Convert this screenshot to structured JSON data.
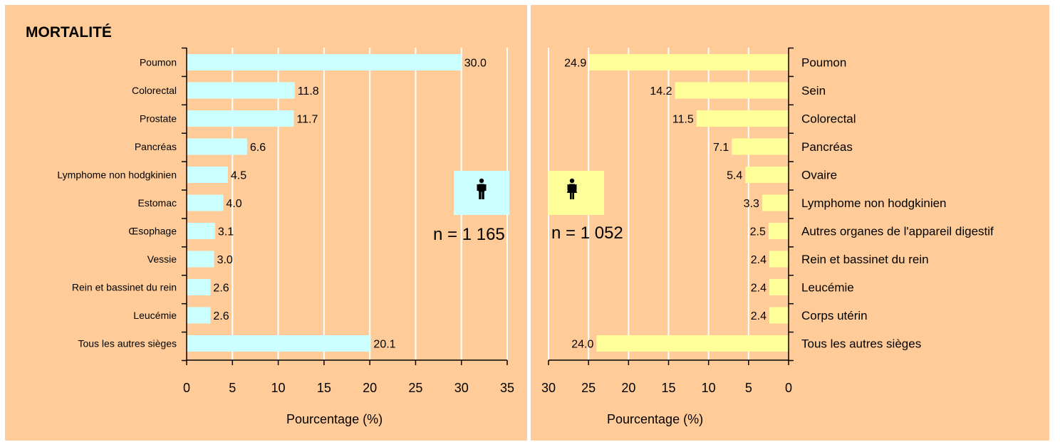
{
  "title": "MORTALITÉ",
  "colors": {
    "background": "#ffcc99",
    "male_bar": "#ccffff",
    "female_bar": "#ffff99",
    "grid": "#ffffff",
    "axis": "#000000"
  },
  "chart_data": [
    {
      "type": "bar",
      "orientation": "horizontal",
      "sex": "male",
      "icon": "man-icon",
      "n_label": "n = 1 165",
      "xlabel": "Pourcentage (%)",
      "xlim": [
        0,
        35
      ],
      "xticks": [
        0,
        5,
        10,
        15,
        20,
        25,
        30,
        35
      ],
      "categories": [
        "Poumon",
        "Colorectal",
        "Prostate",
        "Pancréas",
        "Lymphome non hodgkinien",
        "Estomac",
        "Œsophage",
        "Vessie",
        "Rein et bassinet du rein",
        "Leucémie",
        "Tous les autres sièges"
      ],
      "values": [
        30.0,
        11.8,
        11.7,
        6.6,
        4.5,
        4.0,
        3.1,
        3.0,
        2.6,
        2.6,
        20.1
      ],
      "value_labels": [
        "30.0",
        "11.8",
        "11.7",
        "6.6",
        "4.5",
        "4.0",
        "3.1",
        "3.0",
        "2.6",
        "2.6",
        "20.1"
      ],
      "grid": true
    },
    {
      "type": "bar",
      "orientation": "horizontal",
      "direction": "reversed",
      "sex": "female",
      "icon": "woman-icon",
      "n_label": "n = 1 052",
      "xlabel": "Pourcentage (%)",
      "xlim": [
        0,
        30
      ],
      "xticks": [
        30,
        25,
        20,
        15,
        10,
        5,
        0
      ],
      "categories": [
        "Poumon",
        "Sein",
        "Colorectal",
        "Pancréas",
        "Ovaire",
        "Lymphome non hodgkinien",
        "Autres organes de l'appareil digestif",
        "Rein et bassinet du rein",
        "Leucémie",
        "Corps utérin",
        "Tous les autres sièges"
      ],
      "values": [
        24.9,
        14.2,
        11.5,
        7.1,
        5.4,
        3.3,
        2.5,
        2.4,
        2.4,
        2.4,
        24.0
      ],
      "value_labels": [
        "24.9",
        "14.2",
        "11.5",
        "7.1",
        "5.4",
        "3.3",
        "2.5",
        "2.4",
        "2.4",
        "2.4",
        "24.0"
      ],
      "grid": true
    }
  ]
}
